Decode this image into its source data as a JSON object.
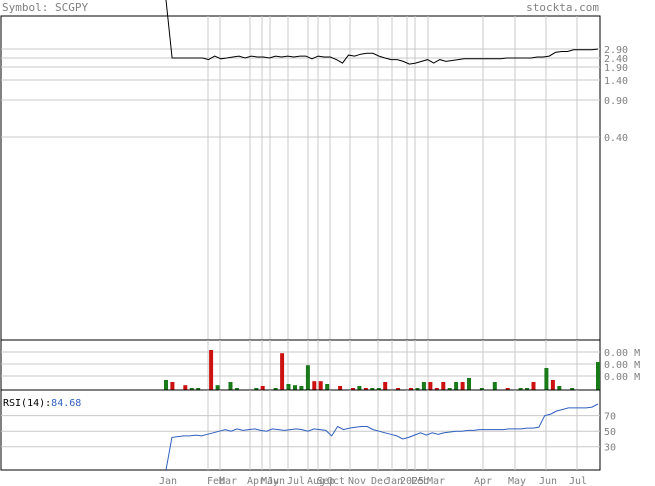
{
  "header": {
    "symbol_label": "Symbol: SCGPY",
    "site": "stockta.com"
  },
  "colors": {
    "price": "#000000",
    "rsi": "#2f5fbf",
    "up_volume": "#1a7a1a",
    "down_volume": "#cc1111",
    "grid": "#c8c8c8",
    "frame": "#000000",
    "label": "#808080"
  },
  "chart_data": [
    {
      "type": "line",
      "panel": "price",
      "scale": "log",
      "ylim": [
        0.3,
        6.5
      ],
      "y_ticks": [
        "2.90",
        "2.40",
        "1.90",
        "1.40",
        "0.90",
        "0.40"
      ],
      "x_ticks": [
        "Jan",
        "Feb",
        "Mar",
        "Apr",
        "May",
        "Jun",
        "Jul",
        "Aug",
        "Sep",
        "Oct",
        "Nov",
        "Dec",
        "Jan",
        "2025",
        "Feb",
        "Mar",
        "Apr",
        "May",
        "Jun",
        "Jul"
      ],
      "series": [
        {
          "values": [
            6.5,
            2.4,
            2.4,
            2.4,
            2.4,
            2.4,
            2.4,
            2.3,
            2.5,
            2.35,
            2.4,
            2.45,
            2.5,
            2.4,
            2.5,
            2.45,
            2.45,
            2.4,
            2.5,
            2.45,
            2.5,
            2.45,
            2.5,
            2.5,
            2.35,
            2.5,
            2.45,
            2.45,
            2.3,
            2.1,
            2.55,
            2.5,
            2.6,
            2.65,
            2.65,
            2.5,
            2.4,
            2.3,
            2.3,
            2.2,
            2.05,
            2.1,
            2.2,
            2.3,
            2.1,
            2.3,
            2.2,
            2.25,
            2.3,
            2.35,
            2.35,
            2.35,
            2.35,
            2.35,
            2.35,
            2.35,
            2.4,
            2.4,
            2.4,
            2.4,
            2.4,
            2.45,
            2.45,
            2.5,
            2.7,
            2.75,
            2.75,
            2.85,
            2.85,
            2.85,
            2.85,
            2.9
          ]
        }
      ]
    },
    {
      "type": "bar",
      "panel": "volume",
      "y_ticks": [
        "0.00 M",
        "0.00 M",
        "0.00 M"
      ],
      "values": [
        0.25,
        0.2,
        0,
        0.12,
        0.05,
        0.05,
        0,
        1.0,
        0.12,
        0,
        0.2,
        0.05,
        0,
        0,
        0.05,
        0.1,
        0,
        0.05,
        0.92,
        0.15,
        0.12,
        0.1,
        0.62,
        0.22,
        0.22,
        0.15,
        0,
        0.1,
        0,
        0.05,
        0.1,
        0.05,
        0.05,
        0.05,
        0.2,
        0,
        0.05,
        0,
        0.05,
        0.05,
        0.2,
        0.2,
        0.05,
        0.2,
        0.05,
        0.2,
        0.2,
        0.3,
        0,
        0.05,
        0,
        0.2,
        0,
        0.05,
        0,
        0.05,
        0.05,
        0.2,
        0,
        0.55,
        0.25,
        0.1,
        0,
        0.05,
        0,
        0,
        0,
        0.7
      ],
      "up": [
        true,
        false,
        false,
        false,
        true,
        true,
        false,
        false,
        true,
        false,
        true,
        true,
        false,
        false,
        true,
        false,
        false,
        true,
        false,
        true,
        true,
        true,
        true,
        false,
        false,
        true,
        false,
        false,
        false,
        false,
        true,
        false,
        true,
        true,
        false,
        false,
        false,
        false,
        false,
        true,
        true,
        false,
        false,
        false,
        true,
        true,
        false,
        true,
        false,
        true,
        false,
        true,
        false,
        false,
        false,
        true,
        true,
        false,
        false,
        true,
        false,
        true,
        false,
        true,
        false,
        false,
        false,
        true
      ]
    },
    {
      "type": "line",
      "panel": "rsi",
      "label": "RSI(14):",
      "value_label": "84.68",
      "ylim": [
        0,
        100
      ],
      "y_ticks": [
        "70",
        "50",
        "30"
      ],
      "series": [
        {
          "values": [
            0,
            42,
            43,
            44,
            44,
            45,
            44,
            46,
            48,
            50,
            52,
            50,
            53,
            51,
            52,
            53,
            51,
            50,
            53,
            52,
            51,
            52,
            53,
            52,
            50,
            53,
            52,
            51,
            44,
            56,
            52,
            54,
            55,
            56,
            56,
            52,
            50,
            48,
            46,
            44,
            40,
            42,
            45,
            48,
            45,
            48,
            46,
            48,
            49,
            50,
            50,
            51,
            51,
            52,
            52,
            52,
            52,
            52,
            53,
            53,
            53,
            54,
            54,
            55,
            70,
            72,
            76,
            78,
            80,
            80,
            80,
            80,
            81,
            85
          ]
        }
      ]
    }
  ]
}
